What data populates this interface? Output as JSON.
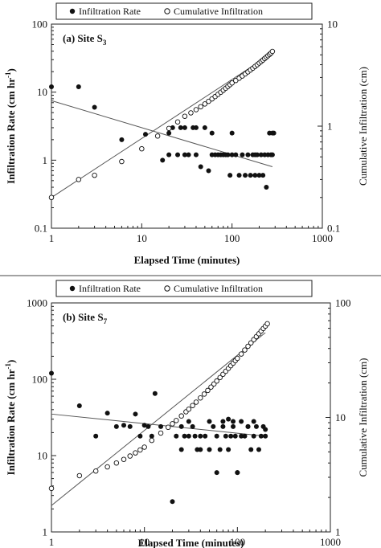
{
  "chart_data": [
    {
      "type": "scatter",
      "title": "(a) Site S",
      "title_sub": "3",
      "xlabel": "Elapsed Time (minutes)",
      "ylabel": "Infiltration Rate (cm hr",
      "ylabel_sup": "-1",
      "ylabel_end": ")",
      "y2label": "Cumulative Infiltration (cm)",
      "xscale": "log",
      "yscale": "log",
      "y2scale": "log",
      "xlim": [
        1,
        1000
      ],
      "ylim": [
        0.1,
        100
      ],
      "y2lim": [
        0.1,
        10
      ],
      "xticks": [
        "1",
        "10",
        "100",
        "1000"
      ],
      "yticks": [
        "0.1",
        "1",
        "10",
        "100"
      ],
      "y2ticks": [
        "0.1",
        "1",
        "10"
      ],
      "legend": {
        "position": "top",
        "entries": [
          "Infiltration Rate",
          "Cumulative Infiltration"
        ]
      },
      "series": [
        {
          "name": "Infiltration Rate",
          "marker": "filled-circle",
          "axis": "left",
          "x": [
            1,
            2,
            3,
            6,
            11,
            17,
            20,
            22,
            25,
            27,
            30,
            33,
            37,
            40,
            45,
            50,
            55,
            60,
            65,
            70,
            75,
            80,
            85,
            90,
            95,
            100,
            110,
            120,
            130,
            140,
            150,
            160,
            170,
            180,
            190,
            200,
            210,
            220,
            230,
            240,
            250,
            260,
            270,
            280,
            290,
            20,
            30,
            40,
            60,
            100,
            180,
            280
          ],
          "y": [
            12,
            12,
            6,
            2,
            2.4,
            1,
            1.2,
            3,
            1.2,
            3,
            1.2,
            1.2,
            3,
            1.2,
            0.8,
            3,
            0.7,
            1.2,
            1.2,
            1.2,
            1.2,
            1.2,
            1.2,
            1.2,
            0.6,
            1.2,
            1.2,
            0.6,
            1.2,
            0.6,
            1.2,
            0.6,
            1.2,
            0.6,
            1.2,
            0.6,
            1.2,
            0.6,
            1.2,
            0.4,
            1.2,
            2.5,
            1.2,
            1.2,
            2.5,
            2.5,
            3,
            3,
            2.5,
            2.5,
            1.2,
            2.5
          ]
        },
        {
          "name": "Cumulative Infiltration",
          "marker": "open-circle",
          "axis": "right",
          "x": [
            1,
            2,
            3,
            6,
            10,
            15,
            20,
            25,
            30,
            35,
            40,
            45,
            50,
            55,
            60,
            65,
            70,
            75,
            80,
            85,
            90,
            95,
            100,
            110,
            120,
            130,
            140,
            150,
            160,
            170,
            180,
            190,
            200,
            210,
            220,
            230,
            240,
            250,
            260,
            270,
            280
          ],
          "y": [
            0.2,
            0.3,
            0.33,
            0.45,
            0.6,
            0.8,
            0.95,
            1.1,
            1.25,
            1.35,
            1.45,
            1.55,
            1.65,
            1.75,
            1.85,
            1.95,
            2.05,
            2.15,
            2.25,
            2.35,
            2.45,
            2.55,
            2.65,
            2.8,
            2.95,
            3.1,
            3.25,
            3.4,
            3.55,
            3.7,
            3.85,
            4.0,
            4.15,
            4.3,
            4.45,
            4.6,
            4.75,
            4.9,
            5.05,
            5.2,
            5.4
          ]
        }
      ],
      "trendlines": [
        {
          "axis": "left",
          "from": [
            1,
            7.5
          ],
          "to": [
            280,
            0.8
          ]
        },
        {
          "axis": "right",
          "from": [
            1,
            0.2
          ],
          "to": [
            280,
            5.2
          ]
        }
      ]
    },
    {
      "type": "scatter",
      "title": "(b) Site S",
      "title_sub": "7",
      "xlabel": "Elapsed Time (minutes)",
      "ylabel": "Infiltration Rate (cm hr",
      "ylabel_sup": "-1",
      "ylabel_end": ")",
      "y2label": "Cumulative Infiltration (cm)",
      "xscale": "log",
      "yscale": "log",
      "y2scale": "log",
      "xlim": [
        1,
        1000
      ],
      "ylim": [
        1,
        1000
      ],
      "y2lim": [
        1,
        100
      ],
      "xticks": [
        "1",
        "10",
        "100",
        "1000"
      ],
      "yticks": [
        "1",
        "10",
        "100",
        "1000"
      ],
      "y2ticks": [
        "1",
        "10",
        "100"
      ],
      "legend": {
        "position": "top",
        "entries": [
          "Infiltration Rate",
          "Cumulative Infiltration"
        ]
      },
      "series": [
        {
          "name": "Infiltration Rate",
          "marker": "filled-circle",
          "axis": "left",
          "x": [
            1,
            2,
            3,
            4,
            5,
            6,
            7,
            8,
            9,
            10,
            11,
            12,
            13,
            15,
            20,
            22,
            25,
            27,
            30,
            33,
            35,
            37,
            40,
            45,
            50,
            55,
            60,
            65,
            70,
            75,
            80,
            85,
            90,
            95,
            100,
            110,
            120,
            130,
            140,
            150,
            160,
            170,
            180,
            190,
            200,
            30,
            50,
            70,
            90,
            110,
            150,
            60,
            100,
            25,
            40,
            80,
            130,
            200
          ],
          "y": [
            120,
            45,
            18,
            36,
            24,
            25,
            24,
            35,
            18,
            25,
            24,
            18,
            65,
            24,
            2.5,
            18,
            24,
            18,
            18,
            24,
            18,
            12,
            18,
            18,
            12,
            24,
            18,
            12,
            24,
            18,
            12,
            18,
            24,
            18,
            6,
            18,
            18,
            24,
            12,
            18,
            24,
            12,
            18,
            24,
            18,
            28,
            28,
            28,
            28,
            28,
            28,
            6,
            6,
            12,
            12,
            30,
            24,
            22
          ]
        },
        {
          "name": "Cumulative Infiltration",
          "marker": "open-circle",
          "axis": "right",
          "x": [
            1,
            2,
            3,
            4,
            5,
            6,
            7,
            8,
            9,
            10,
            12,
            15,
            18,
            20,
            22,
            25,
            28,
            30,
            33,
            36,
            40,
            44,
            48,
            52,
            56,
            60,
            65,
            70,
            75,
            80,
            85,
            90,
            95,
            100,
            110,
            120,
            130,
            140,
            150,
            160,
            170,
            180,
            190,
            200,
            210
          ],
          "y": [
            2.4,
            3.1,
            3.4,
            3.7,
            4.0,
            4.3,
            4.6,
            4.9,
            5.2,
            5.5,
            6.3,
            7.3,
            8.2,
            8.8,
            9.4,
            10.3,
            11.2,
            11.8,
            12.7,
            13.6,
            14.8,
            16.0,
            17.2,
            18.4,
            19.6,
            20.8,
            22.3,
            23.8,
            25.3,
            26.8,
            28.3,
            29.8,
            31.3,
            32.8,
            35.8,
            38.8,
            41.8,
            44.8,
            47.8,
            50.8,
            53.8,
            56.8,
            59.8,
            62.8,
            65.8
          ]
        }
      ],
      "trendlines": [
        {
          "axis": "left",
          "from": [
            1,
            35
          ],
          "to": [
            200,
            18
          ]
        },
        {
          "axis": "right",
          "from": [
            1,
            1.7
          ],
          "to": [
            200,
            55
          ]
        }
      ]
    }
  ]
}
